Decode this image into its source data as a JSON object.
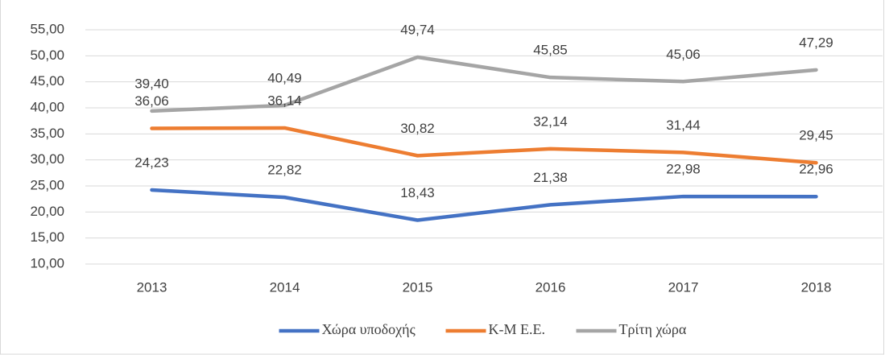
{
  "chart_data": {
    "type": "line",
    "categories": [
      "2013",
      "2014",
      "2015",
      "2016",
      "2017",
      "2018"
    ],
    "series": [
      {
        "name": "Χώρα υποδοχής",
        "color": "#4472c4",
        "values": [
          24.23,
          22.82,
          18.43,
          21.38,
          22.98,
          22.96
        ],
        "value_labels": [
          "24,23",
          "22,82",
          "18,43",
          "21,38",
          "22,98",
          "22,96"
        ]
      },
      {
        "name": "Κ-Μ Ε.Ε.",
        "color": "#ed7d31",
        "values": [
          36.06,
          36.14,
          30.82,
          32.14,
          31.44,
          29.45
        ],
        "value_labels": [
          "36,06",
          "36,14",
          "30,82",
          "32,14",
          "31,44",
          "29,45"
        ]
      },
      {
        "name": "Τρίτη χώρα",
        "color": "#a5a5a5",
        "values": [
          39.4,
          40.49,
          49.74,
          45.85,
          45.06,
          47.29
        ],
        "value_labels": [
          "39,40",
          "40,49",
          "49,74",
          "45,85",
          "45,06",
          "47,29"
        ]
      }
    ],
    "ylim": [
      10,
      55
    ],
    "yticks": [
      {
        "value": 10,
        "label": "10,00"
      },
      {
        "value": 15,
        "label": "15,00"
      },
      {
        "value": 20,
        "label": "20,00"
      },
      {
        "value": 25,
        "label": "25,00"
      },
      {
        "value": 30,
        "label": "30,00"
      },
      {
        "value": 35,
        "label": "35,00"
      },
      {
        "value": 40,
        "label": "40,00"
      },
      {
        "value": 45,
        "label": "45,00"
      },
      {
        "value": 50,
        "label": "50,00"
      },
      {
        "value": 55,
        "label": "55,00"
      }
    ],
    "grid": true,
    "legend": "bottom"
  }
}
